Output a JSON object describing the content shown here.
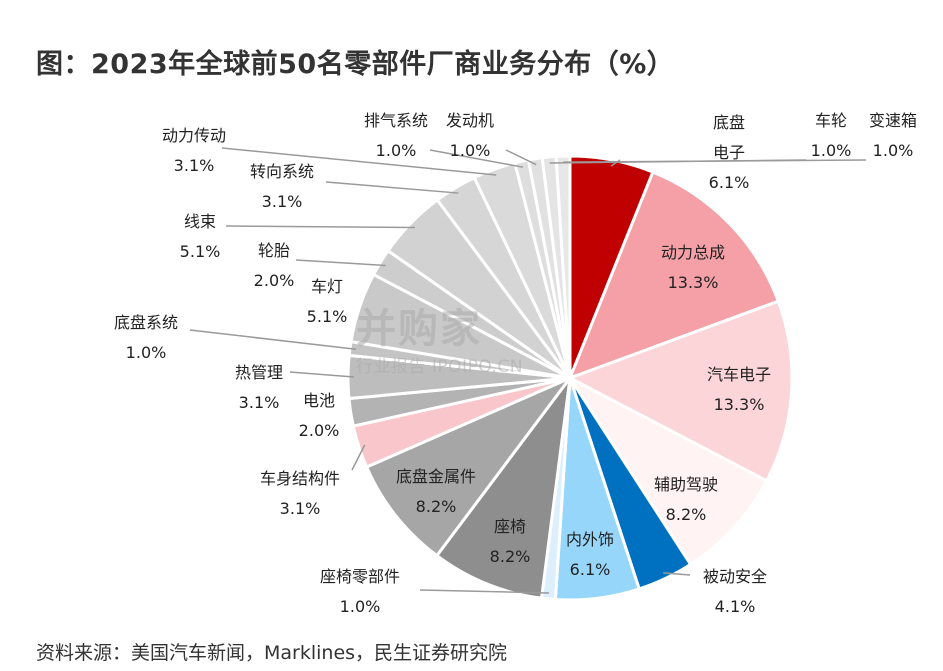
{
  "title": "图：2023年全球前50名零部件厂商业务分布（%）",
  "source": "资料来源：美国汽车新闻，Marklines，民生证券研究院",
  "watermark": {
    "brand": "并购家",
    "sub": "行业报告 IPOIPO.CN"
  },
  "chart_data": {
    "type": "pie",
    "title": "图：2023年全球前50名零部件厂商业务分布（%）",
    "unit": "%",
    "slices": [
      {
        "name": "底盘电子",
        "label_lines": [
          "底盘",
          "电子"
        ],
        "value": 6.1,
        "color": "#c00000"
      },
      {
        "name": "动力总成",
        "label_lines": [
          "动力总成"
        ],
        "value": 13.3,
        "color": "#f4a0a6"
      },
      {
        "name": "汽车电子",
        "label_lines": [
          "汽车电子"
        ],
        "value": 13.3,
        "color": "#fcd5d8"
      },
      {
        "name": "辅助驾驶",
        "label_lines": [
          "辅助驾驶"
        ],
        "value": 8.2,
        "color": "#fff3f3"
      },
      {
        "name": "被动安全",
        "label_lines": [
          "被动安全"
        ],
        "value": 4.1,
        "color": "#0070c0"
      },
      {
        "name": "内外饰",
        "label_lines": [
          "内外饰"
        ],
        "value": 6.1,
        "color": "#97d6fb"
      },
      {
        "name": "座椅零部件",
        "label_lines": [
          "座椅零部件"
        ],
        "value": 1.0,
        "color": "#ddeffc"
      },
      {
        "name": "座椅",
        "label_lines": [
          "座椅"
        ],
        "value": 8.2,
        "color": "#8e8e8e"
      },
      {
        "name": "底盘金属件",
        "label_lines": [
          "底盘金属件"
        ],
        "value": 8.2,
        "color": "#a6a6a6"
      },
      {
        "name": "车身结构件",
        "label_lines": [
          "车身结构件"
        ],
        "value": 3.1,
        "color": "#f9c6cb"
      },
      {
        "name": "电池",
        "label_lines": [
          "电池"
        ],
        "value": 2.0,
        "color": "#b3b3b3"
      },
      {
        "name": "热管理",
        "label_lines": [
          "热管理"
        ],
        "value": 3.1,
        "color": "#bdbdbd"
      },
      {
        "name": "底盘系统",
        "label_lines": [
          "底盘系统"
        ],
        "value": 1.0,
        "color": "#c4c4c4"
      },
      {
        "name": "车灯",
        "label_lines": [
          "车灯"
        ],
        "value": 5.1,
        "color": "#c9c9c9"
      },
      {
        "name": "轮胎",
        "label_lines": [
          "轮胎"
        ],
        "value": 2.0,
        "color": "#cdcdcd"
      },
      {
        "name": "线束",
        "label_lines": [
          "线束"
        ],
        "value": 5.1,
        "color": "#d2d2d2"
      },
      {
        "name": "转向系统",
        "label_lines": [
          "转向系统"
        ],
        "value": 3.1,
        "color": "#d6d6d6"
      },
      {
        "name": "动力传动",
        "label_lines": [
          "动力传动"
        ],
        "value": 3.1,
        "color": "#dadada"
      },
      {
        "name": "排气系统",
        "label_lines": [
          "排气系统"
        ],
        "value": 1.0,
        "color": "#dedede"
      },
      {
        "name": "发动机",
        "label_lines": [
          "发动机"
        ],
        "value": 1.0,
        "color": "#e1e1e1"
      },
      {
        "name": "车轮",
        "label_lines": [
          "车轮"
        ],
        "value": 1.0,
        "color": "#e4e4e4"
      },
      {
        "name": "变速箱",
        "label_lines": [
          "变速箱"
        ],
        "value": 1.0,
        "color": "#e7e7e7"
      }
    ]
  }
}
